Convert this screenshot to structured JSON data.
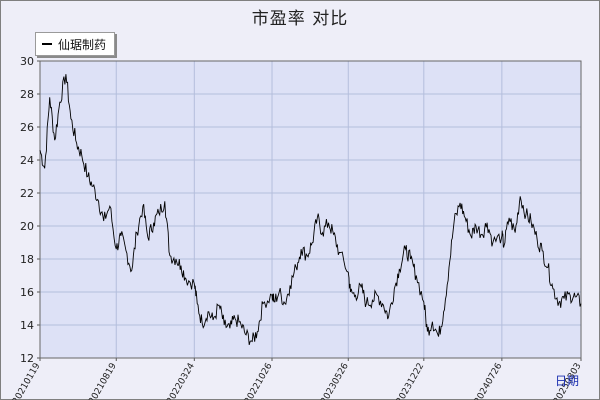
{
  "chart_data": {
    "type": "line",
    "title": "市盈率 对比",
    "xlabel": "日期",
    "ylabel": "",
    "ylim": [
      12,
      30
    ],
    "yticks": [
      12,
      14,
      16,
      18,
      20,
      22,
      24,
      26,
      28,
      30
    ],
    "xticks": [
      "20210119",
      "20210819",
      "20220324",
      "20221026",
      "20230526",
      "20231222",
      "20240726",
      "20250303"
    ],
    "grid": true,
    "legend_position": "top-left",
    "colors": {
      "line": "#000000",
      "plot_bg": "#dde1f6",
      "grid": "#b4bedc"
    },
    "series": [
      {
        "name": "仙琚制药",
        "x": [
          "20210119",
          "20210201",
          "20210215",
          "20210301",
          "20210315",
          "20210401",
          "20210415",
          "20210501",
          "20210515",
          "20210601",
          "20210615",
          "20210701",
          "20210715",
          "20210801",
          "20210819",
          "20210901",
          "20210915",
          "20211001",
          "20211015",
          "20211101",
          "20211115",
          "20211201",
          "20211215",
          "20220101",
          "20220115",
          "20220201",
          "20220215",
          "20220301",
          "20220324",
          "20220401",
          "20220415",
          "20220501",
          "20220515",
          "20220601",
          "20220615",
          "20220701",
          "20220715",
          "20220801",
          "20220815",
          "20220901",
          "20220915",
          "20221001",
          "20221026",
          "20221101",
          "20221115",
          "20221201",
          "20221215",
          "20230101",
          "20230115",
          "20230201",
          "20230215",
          "20230301",
          "20230315",
          "20230401",
          "20230415",
          "20230501",
          "20230526",
          "20230601",
          "20230615",
          "20230701",
          "20230715",
          "20230801",
          "20230815",
          "20230901",
          "20230915",
          "20231001",
          "20231015",
          "20231101",
          "20231115",
          "20231201",
          "20231222",
          "20240101",
          "20240115",
          "20240201",
          "20240215",
          "20240301",
          "20240315",
          "20240401",
          "20240415",
          "20240501",
          "20240515",
          "20240601",
          "20240615",
          "20240701",
          "20240726",
          "20240801",
          "20240815",
          "20240901",
          "20240915",
          "20241001",
          "20241015",
          "20241101",
          "20241115",
          "20241201",
          "20241215",
          "20250101",
          "20250115",
          "20250201",
          "20250215",
          "20250303"
        ],
        "values": [
          24.6,
          23.5,
          27.8,
          25.2,
          27.5,
          29.2,
          26.5,
          25.0,
          24.3,
          23.0,
          22.4,
          21.5,
          20.3,
          21.2,
          18.6,
          19.4,
          18.5,
          17.3,
          19.6,
          21.2,
          19.3,
          20.2,
          20.8,
          21.5,
          18.2,
          18.0,
          17.6,
          16.8,
          16.5,
          15.3,
          14.1,
          14.8,
          14.3,
          15.2,
          14.0,
          13.8,
          14.4,
          14.0,
          13.4,
          13.0,
          13.6,
          15.3,
          15.8,
          15.4,
          16.0,
          15.3,
          16.4,
          17.5,
          18.6,
          18.2,
          19.0,
          20.5,
          19.6,
          20.2,
          19.5,
          18.4,
          17.2,
          16.0,
          15.8,
          16.3,
          15.3,
          15.5,
          15.8,
          15.2,
          14.5,
          16.2,
          17.4,
          18.6,
          18.0,
          17.0,
          15.4,
          13.6,
          14.2,
          13.3,
          14.8,
          17.5,
          20.2,
          21.4,
          20.5,
          19.4,
          20.0,
          19.5,
          20.2,
          19.0,
          19.4,
          18.8,
          20.5,
          19.6,
          21.8,
          20.7,
          20.3,
          19.2,
          18.5,
          17.5,
          16.2,
          15.4,
          15.6,
          15.8,
          15.7,
          15.3
        ]
      }
    ]
  }
}
